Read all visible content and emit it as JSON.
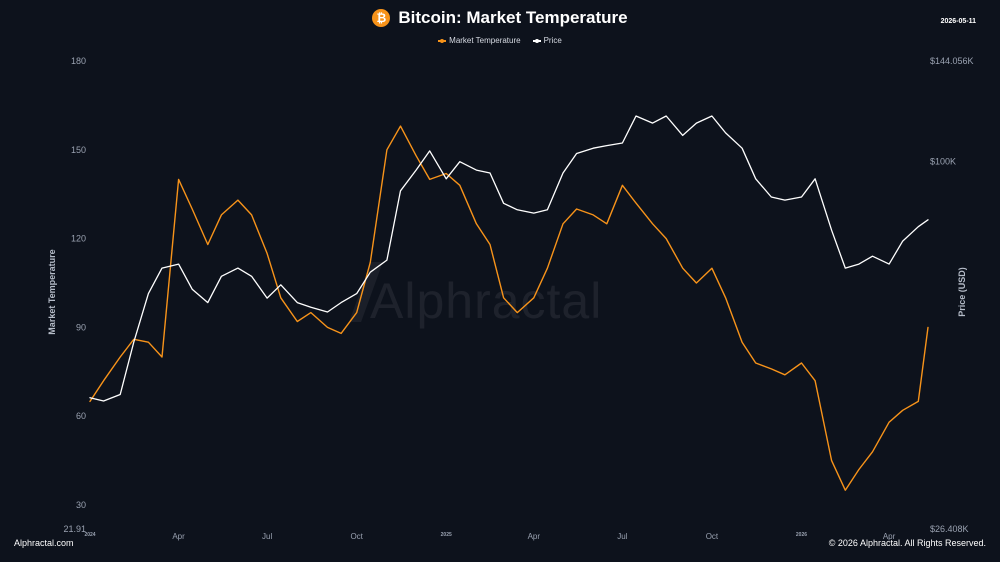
{
  "header": {
    "logo_icon": "bitcoin-icon",
    "logo_glyph": "₿",
    "title": "Bitcoin: Market Temperature",
    "date": "2026-05-11"
  },
  "watermark": "Alphractal",
  "footer": {
    "left": "Alphractal.com",
    "right": "© 2026 Alphractal. All Rights Reserved."
  },
  "colors": {
    "background": "#0d121c",
    "temperature": "#f7931a",
    "price": "#ffffff"
  },
  "chart_data": {
    "type": "line",
    "title": "Bitcoin: Market Temperature",
    "legend_position": "top-center",
    "grid": false,
    "y_left": {
      "label": "Market Temperature",
      "ticks": [
        "180",
        "150",
        "120",
        "90",
        "60",
        "30",
        "21.91"
      ],
      "tick_values": [
        180,
        150,
        120,
        90,
        60,
        30,
        21.91
      ],
      "range": [
        21.91,
        180
      ]
    },
    "y_right": {
      "label": "Price (USD)",
      "scale": "log",
      "ticks": [
        "$144.056K",
        "$100K",
        "$26.408K"
      ],
      "tick_values": [
        144056,
        100000,
        26408
      ],
      "range": [
        26408,
        144056
      ]
    },
    "x": {
      "range": [
        "2024-01-01",
        "2026-05-11"
      ],
      "ticks": [
        {
          "label": "2024",
          "date": "2024-01-01"
        },
        {
          "label": "Apr",
          "date": "2024-04-01"
        },
        {
          "label": "Jul",
          "date": "2024-07-01"
        },
        {
          "label": "Oct",
          "date": "2024-10-01"
        },
        {
          "label": "2025",
          "date": "2025-01-01"
        },
        {
          "label": "Apr",
          "date": "2025-04-01"
        },
        {
          "label": "Jul",
          "date": "2025-07-01"
        },
        {
          "label": "Oct",
          "date": "2025-10-01"
        },
        {
          "label": "2026",
          "date": "2026-01-01"
        },
        {
          "label": "Apr",
          "date": "2026-04-01"
        }
      ]
    },
    "series": [
      {
        "name": "Market Temperature",
        "axis": "left",
        "color": "#f7931a",
        "points": [
          [
            "2024-01-01",
            65
          ],
          [
            "2024-01-15",
            72
          ],
          [
            "2024-02-01",
            80
          ],
          [
            "2024-02-15",
            86
          ],
          [
            "2024-03-01",
            85
          ],
          [
            "2024-03-15",
            80
          ],
          [
            "2024-04-01",
            140
          ],
          [
            "2024-04-15",
            130
          ],
          [
            "2024-05-01",
            118
          ],
          [
            "2024-05-15",
            128
          ],
          [
            "2024-06-01",
            133
          ],
          [
            "2024-06-15",
            128
          ],
          [
            "2024-07-01",
            115
          ],
          [
            "2024-07-15",
            100
          ],
          [
            "2024-08-01",
            92
          ],
          [
            "2024-08-15",
            95
          ],
          [
            "2024-09-01",
            90
          ],
          [
            "2024-09-15",
            88
          ],
          [
            "2024-10-01",
            95
          ],
          [
            "2024-10-15",
            112
          ],
          [
            "2024-11-01",
            150
          ],
          [
            "2024-11-15",
            158
          ],
          [
            "2024-12-01",
            148
          ],
          [
            "2024-12-15",
            140
          ],
          [
            "2025-01-01",
            142
          ],
          [
            "2025-01-15",
            138
          ],
          [
            "2025-02-01",
            125
          ],
          [
            "2025-02-15",
            118
          ],
          [
            "2025-03-01",
            100
          ],
          [
            "2025-03-15",
            95
          ],
          [
            "2025-04-01",
            100
          ],
          [
            "2025-04-15",
            110
          ],
          [
            "2025-05-01",
            125
          ],
          [
            "2025-05-15",
            130
          ],
          [
            "2025-06-01",
            128
          ],
          [
            "2025-06-15",
            125
          ],
          [
            "2025-07-01",
            138
          ],
          [
            "2025-07-15",
            132
          ],
          [
            "2025-08-01",
            125
          ],
          [
            "2025-08-15",
            120
          ],
          [
            "2025-09-01",
            110
          ],
          [
            "2025-09-15",
            105
          ],
          [
            "2025-10-01",
            110
          ],
          [
            "2025-10-15",
            100
          ],
          [
            "2025-11-01",
            85
          ],
          [
            "2025-11-15",
            78
          ],
          [
            "2025-12-01",
            76
          ],
          [
            "2025-12-15",
            74
          ],
          [
            "2026-01-01",
            78
          ],
          [
            "2026-01-15",
            72
          ],
          [
            "2026-02-01",
            45
          ],
          [
            "2026-02-15",
            35
          ],
          [
            "2026-03-01",
            42
          ],
          [
            "2026-03-15",
            48
          ],
          [
            "2026-04-01",
            58
          ],
          [
            "2026-04-15",
            62
          ],
          [
            "2026-05-01",
            65
          ],
          [
            "2026-05-11",
            90
          ]
        ]
      },
      {
        "name": "Price",
        "axis": "right",
        "color": "#ffffff",
        "points": [
          [
            "2024-01-01",
            42500
          ],
          [
            "2024-01-15",
            42000
          ],
          [
            "2024-02-01",
            43000
          ],
          [
            "2024-02-15",
            52000
          ],
          [
            "2024-03-01",
            62000
          ],
          [
            "2024-03-15",
            68000
          ],
          [
            "2024-04-01",
            69000
          ],
          [
            "2024-04-15",
            63000
          ],
          [
            "2024-05-01",
            60000
          ],
          [
            "2024-05-15",
            66000
          ],
          [
            "2024-06-01",
            68000
          ],
          [
            "2024-06-15",
            66000
          ],
          [
            "2024-07-01",
            61000
          ],
          [
            "2024-07-15",
            64000
          ],
          [
            "2024-08-01",
            60000
          ],
          [
            "2024-08-15",
            59000
          ],
          [
            "2024-09-01",
            58000
          ],
          [
            "2024-09-15",
            60000
          ],
          [
            "2024-10-01",
            62000
          ],
          [
            "2024-10-15",
            67000
          ],
          [
            "2024-11-01",
            70000
          ],
          [
            "2024-11-15",
            90000
          ],
          [
            "2024-12-01",
            97000
          ],
          [
            "2024-12-15",
            104000
          ],
          [
            "2025-01-01",
            94000
          ],
          [
            "2025-01-15",
            100000
          ],
          [
            "2025-02-01",
            97000
          ],
          [
            "2025-02-15",
            96000
          ],
          [
            "2025-03-01",
            86000
          ],
          [
            "2025-03-15",
            84000
          ],
          [
            "2025-04-01",
            83000
          ],
          [
            "2025-04-15",
            84000
          ],
          [
            "2025-05-01",
            96000
          ],
          [
            "2025-05-15",
            103000
          ],
          [
            "2025-06-01",
            105000
          ],
          [
            "2025-06-15",
            106000
          ],
          [
            "2025-07-01",
            107000
          ],
          [
            "2025-07-15",
            118000
          ],
          [
            "2025-08-01",
            115000
          ],
          [
            "2025-08-15",
            118000
          ],
          [
            "2025-09-01",
            110000
          ],
          [
            "2025-09-15",
            115000
          ],
          [
            "2025-10-01",
            118000
          ],
          [
            "2025-10-15",
            111000
          ],
          [
            "2025-11-01",
            105000
          ],
          [
            "2025-11-15",
            94000
          ],
          [
            "2025-12-01",
            88000
          ],
          [
            "2025-12-15",
            87000
          ],
          [
            "2026-01-01",
            88000
          ],
          [
            "2026-01-15",
            94000
          ],
          [
            "2026-02-01",
            78000
          ],
          [
            "2026-02-15",
            68000
          ],
          [
            "2026-03-01",
            69000
          ],
          [
            "2026-03-15",
            71000
          ],
          [
            "2026-04-01",
            69000
          ],
          [
            "2026-04-15",
            75000
          ],
          [
            "2026-05-01",
            79000
          ],
          [
            "2026-05-11",
            81000
          ]
        ]
      }
    ]
  }
}
